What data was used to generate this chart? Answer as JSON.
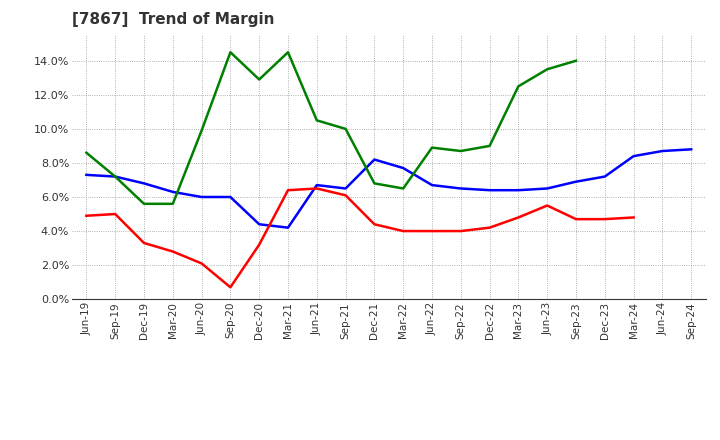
{
  "title": "[7867]  Trend of Margin",
  "labels": [
    "Jun-19",
    "Sep-19",
    "Dec-19",
    "Mar-20",
    "Jun-20",
    "Sep-20",
    "Dec-20",
    "Mar-21",
    "Jun-21",
    "Sep-21",
    "Dec-21",
    "Mar-22",
    "Jun-22",
    "Sep-22",
    "Dec-22",
    "Mar-23",
    "Jun-23",
    "Sep-23",
    "Dec-23",
    "Mar-24",
    "Jun-24",
    "Sep-24"
  ],
  "ordinary_income": [
    7.3,
    7.2,
    6.8,
    6.3,
    6.0,
    6.0,
    4.4,
    4.2,
    6.7,
    6.5,
    8.2,
    7.7,
    6.7,
    6.5,
    6.4,
    6.4,
    6.5,
    6.9,
    7.2,
    8.4,
    8.7,
    8.8
  ],
  "net_income": [
    4.9,
    5.0,
    3.3,
    2.8,
    2.1,
    0.7,
    3.2,
    6.4,
    6.5,
    6.1,
    4.4,
    4.0,
    4.0,
    4.0,
    4.2,
    4.8,
    5.5,
    4.7,
    4.7,
    4.8,
    null,
    null
  ],
  "operating_cashflow": [
    8.6,
    7.2,
    5.6,
    5.6,
    9.9,
    14.5,
    12.9,
    14.5,
    10.5,
    10.0,
    6.8,
    6.5,
    8.9,
    8.7,
    9.0,
    12.5,
    13.5,
    14.0,
    null,
    null,
    null,
    null
  ],
  "ylim": [
    0,
    15.5
  ],
  "yticks": [
    0.0,
    2.0,
    4.0,
    6.0,
    8.0,
    10.0,
    12.0,
    14.0
  ],
  "line_color_oi": "#0000FF",
  "line_color_ni": "#FF0000",
  "line_color_ocf": "#008000",
  "background_color": "#FFFFFF",
  "grid_color": "#999999",
  "title_color": "#333333"
}
